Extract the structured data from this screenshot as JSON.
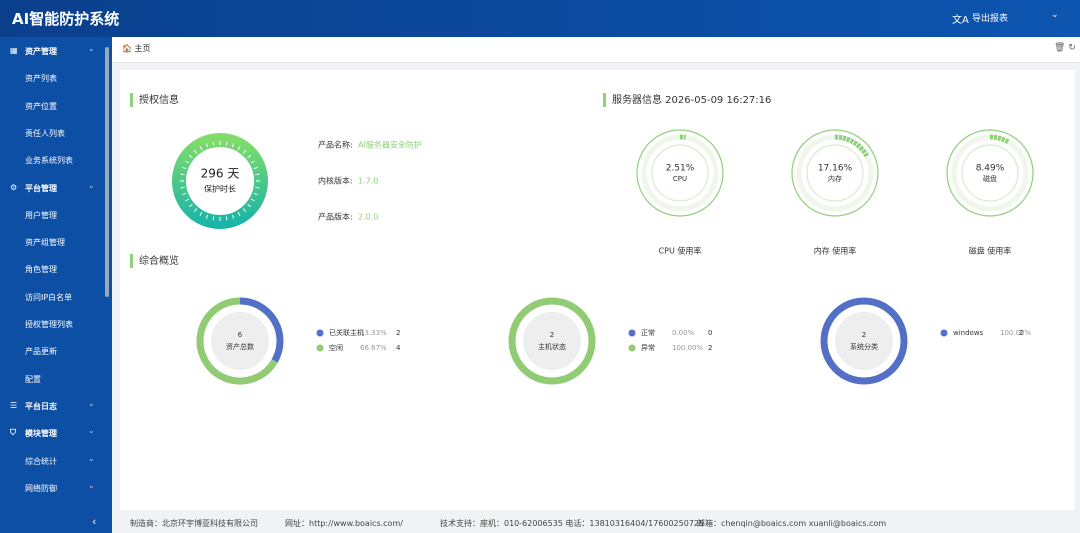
{
  "header": {
    "title": "AI智能防护系统",
    "export": "导出报表"
  },
  "sidebar": {
    "groups": [
      {
        "label": "资产管理",
        "children": [
          "资产列表",
          "资产位置",
          "责任人列表",
          "业务系统列表"
        ]
      },
      {
        "label": "平台管理",
        "children": [
          "用户管理",
          "资产组管理",
          "角色管理",
          "访问IP白名单",
          "授权管理列表",
          "产品更新",
          "配置"
        ]
      },
      {
        "label": "平台日志",
        "children": []
      },
      {
        "label": "模块管理",
        "children": [
          "综合统计",
          "网络防御"
        ]
      }
    ]
  },
  "tab": "主页",
  "license": {
    "title": "授权信息",
    "days": "296 天",
    "days_caption": "保护时长",
    "fields": [
      {
        "label": "产品名称:",
        "value": "AI服务器安全防护"
      },
      {
        "label": "内核版本:",
        "value": "1.7.0"
      },
      {
        "label": "产品版本:",
        "value": "2.0.0"
      }
    ]
  },
  "server": {
    "title": "服务器信息 2026-05-09 16:27:16",
    "color": "#8fd07a",
    "gauges": [
      {
        "value": {
          "value": 2.51,
          "label": "2.51%"
        },
        "name": "CPU",
        "caption": "CPU 使用率"
      },
      {
        "value": {
          "value": 17.16,
          "label": "17.16%"
        },
        "name": "内存",
        "caption": "内存 使用率"
      },
      {
        "value": {
          "value": 8.49,
          "label": "8.49%"
        },
        "name": "磁盘",
        "caption": "磁盘 使用率"
      }
    ]
  },
  "overview": {
    "title": "综合概览",
    "donuts": [
      {
        "total": "6",
        "name": "资产总数",
        "items": [
          {
            "name": "已关联主机",
            "color": "#5470c6",
            "percent": {
              "value": 33.33,
              "label": "33.33%"
            },
            "count": 2
          },
          {
            "name": "空闲",
            "color": "#91cc75",
            "percent": {
              "value": 66.67,
              "label": "66.67%"
            },
            "count": 4
          }
        ]
      },
      {
        "total": "2",
        "name": "主机状态",
        "items": [
          {
            "name": "正常",
            "color": "#5470c6",
            "percent": {
              "value": 0,
              "label": "0.00%"
            },
            "count": 0
          },
          {
            "name": "异常",
            "color": "#91cc75",
            "percent": {
              "value": 100,
              "label": "100.00%"
            },
            "count": 2
          }
        ]
      },
      {
        "total": "2",
        "name": "系统分类",
        "items": [
          {
            "name": "windows",
            "color": "#5470c6",
            "percent": {
              "value": 100,
              "label": "100.00%"
            },
            "count": 2
          }
        ]
      }
    ]
  },
  "footer": [
    "制造商：北京环宇博亚科技有限公司",
    "网址：http://www.boaics.com/",
    "技术支持：座机：010-62006535 电话：13810316404/17600250725",
    "邮箱：chenqin@boaics.com xuanli@boaics.com"
  ]
}
